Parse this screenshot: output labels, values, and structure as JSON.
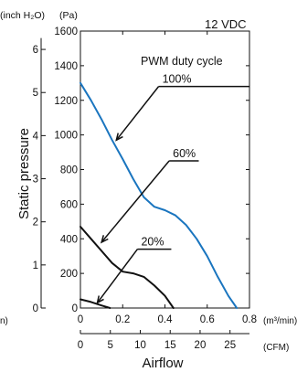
{
  "chart_data": {
    "type": "line",
    "title": "12 VDC",
    "xlabel": "Airflow",
    "ylabel": "Static pressure",
    "x_unit_primary": "(m³/min)",
    "x_unit_secondary": "(CFM)",
    "y_unit_primary": "(Pa)",
    "y_unit_secondary": "(inch H₂O)",
    "left_edge_fragment": "n)",
    "xlim": [
      0,
      0.8
    ],
    "ylim": [
      0,
      1600
    ],
    "x_ticks": [
      "0",
      "0.2",
      "0.4",
      "0.6",
      "0.8"
    ],
    "y_ticks": [
      "0",
      "200",
      "400",
      "600",
      "800",
      "1000",
      "1200",
      "1400",
      "1600"
    ],
    "cfm_ticks": [
      {
        "label": "0",
        "x": 0
      },
      {
        "label": "5",
        "x": 0.1416
      },
      {
        "label": "10",
        "x": 0.2832
      },
      {
        "label": "15",
        "x": 0.4248
      },
      {
        "label": "20",
        "x": 0.5663
      },
      {
        "label": "25",
        "x": 0.7079
      }
    ],
    "inh2o_ticks": [
      {
        "label": "0",
        "y": 0
      },
      {
        "label": "1",
        "y": 249
      },
      {
        "label": "2",
        "y": 498
      },
      {
        "label": "3",
        "y": 747
      },
      {
        "label": "4",
        "y": 996
      },
      {
        "label": "5",
        "y": 1245
      },
      {
        "label": "6",
        "y": 1494
      }
    ],
    "legend_heading": "PWM duty cycle",
    "grid": false,
    "series": [
      {
        "name": "100%",
        "color": "#1a75bf",
        "points": [
          [
            0,
            1300
          ],
          [
            0.05,
            1200
          ],
          [
            0.1,
            1090
          ],
          [
            0.15,
            970
          ],
          [
            0.2,
            860
          ],
          [
            0.25,
            745
          ],
          [
            0.3,
            640
          ],
          [
            0.35,
            585
          ],
          [
            0.4,
            565
          ],
          [
            0.45,
            535
          ],
          [
            0.5,
            480
          ],
          [
            0.55,
            400
          ],
          [
            0.6,
            300
          ],
          [
            0.65,
            180
          ],
          [
            0.7,
            70
          ],
          [
            0.74,
            0
          ]
        ]
      },
      {
        "name": "60%",
        "color": "#111111",
        "points": [
          [
            0,
            470
          ],
          [
            0.05,
            400
          ],
          [
            0.1,
            330
          ],
          [
            0.15,
            260
          ],
          [
            0.2,
            210
          ],
          [
            0.25,
            200
          ],
          [
            0.3,
            180
          ],
          [
            0.35,
            130
          ],
          [
            0.4,
            70
          ],
          [
            0.44,
            0
          ]
        ]
      },
      {
        "name": "20%",
        "color": "#111111",
        "points": [
          [
            0,
            50
          ],
          [
            0.05,
            35
          ],
          [
            0.1,
            15
          ],
          [
            0.14,
            0
          ]
        ]
      }
    ],
    "annotations": [
      {
        "text": "100%",
        "anchor": [
          0.17,
          970
        ],
        "label": [
          0.37,
          1280
        ],
        "line_end": [
          0.8,
          1280
        ]
      },
      {
        "text": "60%",
        "anchor": [
          0.1,
          380
        ],
        "label": [
          0.42,
          850
        ],
        "line_end": [
          0.56,
          850
        ]
      },
      {
        "text": "20%",
        "anchor": [
          0.08,
          30
        ],
        "label": [
          0.27,
          340
        ],
        "line_end": [
          0.43,
          340
        ]
      }
    ]
  }
}
